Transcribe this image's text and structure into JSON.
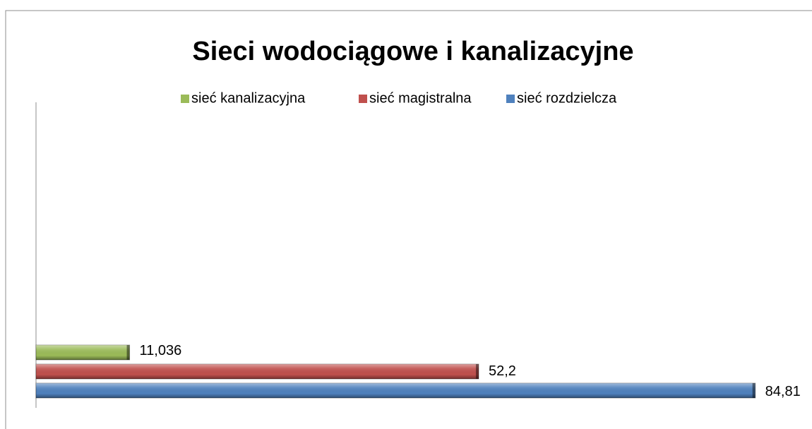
{
  "chart_data": {
    "type": "hbar",
    "title": "Sieci wodociągowe i kanalizacyjne",
    "categories": [
      null
    ],
    "series": [
      {
        "name": "sieć kanalizacyjna",
        "color": "#9bbb59",
        "values": [
          11.036
        ],
        "value_labels": [
          "11,036"
        ]
      },
      {
        "name": "sieć magistralna",
        "color": "#c0504d",
        "values": [
          52.2
        ],
        "value_labels": [
          "52,2"
        ]
      },
      {
        "name": "sieć rozdzielcza",
        "color": "#4f81bd",
        "values": [
          84.81
        ],
        "value_labels": [
          "84,81"
        ]
      }
    ],
    "xlim": [
      0,
      90
    ],
    "legend": "top"
  }
}
